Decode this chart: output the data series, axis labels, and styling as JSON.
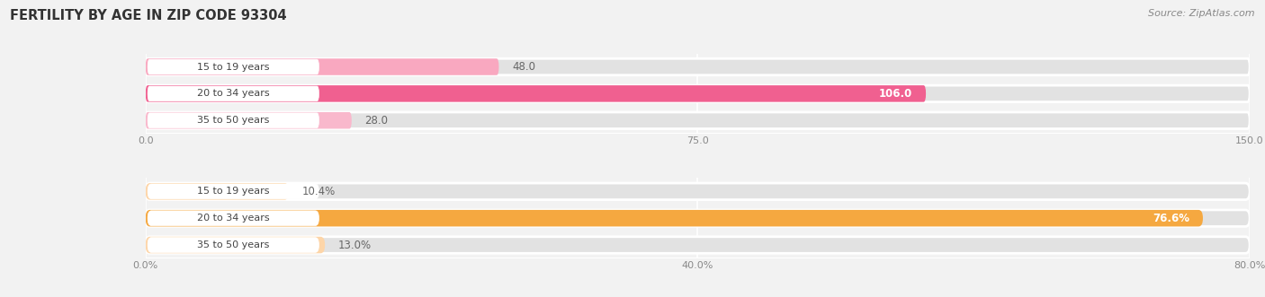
{
  "title": "FERTILITY BY AGE IN ZIP CODE 93304",
  "source": "Source: ZipAtlas.com",
  "top_chart": {
    "categories": [
      "15 to 19 years",
      "20 to 34 years",
      "35 to 50 years"
    ],
    "values": [
      48.0,
      106.0,
      28.0
    ],
    "x_max": 150.0,
    "x_ticks": [
      0.0,
      75.0,
      150.0
    ],
    "x_tick_labels": [
      "0.0",
      "75.0",
      "150.0"
    ],
    "bar_colors": [
      "#f9a8c0",
      "#f06090",
      "#f9b8cc"
    ],
    "label_colors": [
      "#555555",
      "#ffffff",
      "#555555"
    ]
  },
  "bottom_chart": {
    "categories": [
      "15 to 19 years",
      "20 to 34 years",
      "35 to 50 years"
    ],
    "values": [
      10.4,
      76.6,
      13.0
    ],
    "x_max": 80.0,
    "x_ticks": [
      0.0,
      40.0,
      80.0
    ],
    "x_tick_labels": [
      "0.0%",
      "40.0%",
      "80.0%"
    ],
    "bar_colors": [
      "#fdd5a8",
      "#f5a840",
      "#fdd5a8"
    ],
    "label_colors": [
      "#555555",
      "#ffffff",
      "#555555"
    ]
  },
  "background_color": "#f2f2f2",
  "bar_bg_color": "#e2e2e2",
  "label_bg_color": "#ffffff",
  "title_color": "#333333",
  "source_color": "#888888",
  "tick_label_color": "#888888",
  "category_label_color": "#444444",
  "value_label_color_inside": "#ffffff",
  "value_label_color_outside": "#666666"
}
